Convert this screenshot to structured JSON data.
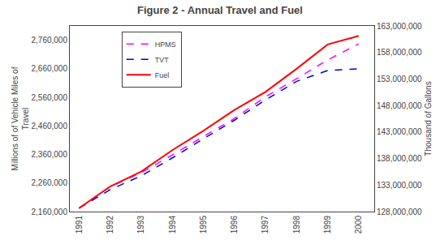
{
  "chart_data": {
    "type": "line",
    "title": "Figure 2 - Annual Travel and Fuel",
    "x": [
      1991,
      1992,
      1993,
      1994,
      1995,
      1996,
      1997,
      1998,
      1999,
      2000
    ],
    "series": [
      {
        "name": "HPMS",
        "color": "#ff00ff",
        "line_style": "dashed",
        "values": [
          2172000,
          2247000,
          2296000,
          2358000,
          2423000,
          2486000,
          2562000,
          2625000,
          2691000,
          2747000
        ]
      },
      {
        "name": "TVT",
        "color": "#0000cc",
        "line_style": "dashed",
        "values": [
          2172000,
          2237000,
          2285000,
          2348000,
          2415000,
          2480000,
          2551000,
          2616000,
          2654000,
          2660000
        ]
      },
      {
        "name": "Fuel",
        "color": "#ff0000",
        "line_style": "solid",
        "values": [
          2172000,
          2248000,
          2300000,
          2375000,
          2443000,
          2516000,
          2579000,
          2660000,
          2745000,
          2775000
        ]
      }
    ],
    "xlim": [
      1990.7,
      2000.5
    ],
    "xticks": [
      1991,
      1992,
      1993,
      1994,
      1995,
      1996,
      1997,
      1998,
      1999,
      2000
    ],
    "ylim": [
      2160000,
      2810000
    ],
    "yticks": [
      {
        "value": 2160000,
        "label": "2,160,000"
      },
      {
        "value": 2260000,
        "label": "2,260,000"
      },
      {
        "value": 2360000,
        "label": "2,360,000"
      },
      {
        "value": 2460000,
        "label": "2,460,000"
      },
      {
        "value": 2560000,
        "label": "2,560,000"
      },
      {
        "value": 2660000,
        "label": "2,660,000"
      },
      {
        "value": 2760000,
        "label": "2,760,000"
      }
    ],
    "y2lim": [
      128000000,
      163000000
    ],
    "y2ticks": [
      {
        "value": 128000000,
        "label": "128,000,000"
      },
      {
        "value": 133000000,
        "label": "133,000,000"
      },
      {
        "value": 138000000,
        "label": "138,000,000"
      },
      {
        "value": 143000000,
        "label": "143,000,000"
      },
      {
        "value": 148000000,
        "label": "148,000,000"
      },
      {
        "value": 153000000,
        "label": "153,000,000"
      },
      {
        "value": 158000000,
        "label": "158,000,000"
      },
      {
        "value": 163000000,
        "label": "163,000,000"
      }
    ],
    "ylabel": "Millions of of Vehicle Miles of\nTravel",
    "y2label": "Thousand of Gallons",
    "legend": "upper left",
    "grid": false
  }
}
